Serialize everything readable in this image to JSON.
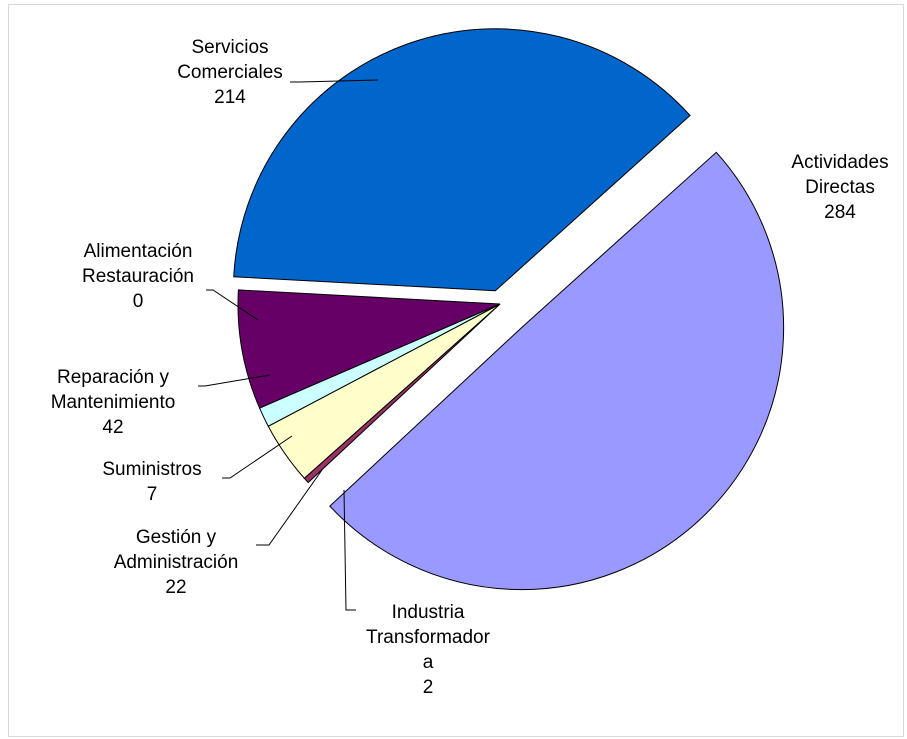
{
  "chart_data": {
    "type": "pie",
    "exploded": true,
    "slices": [
      {
        "label_lines": [
          "Actividades",
          "Directas"
        ],
        "value": 284,
        "color": "#9999ff"
      },
      {
        "label_lines": [
          "Industria",
          "Transformador",
          "a"
        ],
        "value": 2,
        "color": "#993366"
      },
      {
        "label_lines": [
          "Gestión y",
          "Administración"
        ],
        "value": 22,
        "color": "#ffffcc"
      },
      {
        "label_lines": [
          "Suministros"
        ],
        "value": 7,
        "color": "#ccffff"
      },
      {
        "label_lines": [
          "Reparación y",
          "Mantenimiento"
        ],
        "value": 42,
        "color": "#660066"
      },
      {
        "label_lines": [
          "Alimentación",
          "Restauración"
        ],
        "value": 0,
        "color": "#ff8080"
      },
      {
        "label_lines": [
          "Servicios",
          "Comerciales"
        ],
        "value": 214,
        "color": "#0066cc"
      }
    ]
  }
}
